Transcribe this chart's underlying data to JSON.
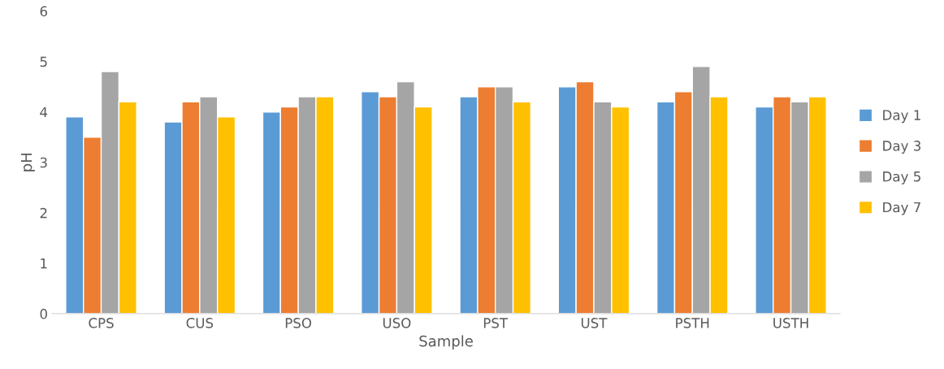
{
  "chart_data": {
    "type": "bar",
    "xlabel": "Sample",
    "ylabel": "pH",
    "categories": [
      "CPS",
      "CUS",
      "PSO",
      "USO",
      "PST",
      "UST",
      "PSTH",
      "USTH"
    ],
    "series": [
      {
        "name": "Day 1",
        "color": "#5b9bd5",
        "values": [
          3.9,
          3.8,
          4.0,
          4.4,
          4.3,
          4.5,
          4.2,
          4.1
        ]
      },
      {
        "name": "Day 3",
        "color": "#ed7d31",
        "values": [
          3.5,
          4.2,
          4.1,
          4.3,
          4.5,
          4.6,
          4.4,
          4.3
        ]
      },
      {
        "name": "Day 5",
        "color": "#a5a5a5",
        "values": [
          4.8,
          4.3,
          4.3,
          4.6,
          4.5,
          4.2,
          4.9,
          4.2
        ]
      },
      {
        "name": "Day 7",
        "color": "#ffc000",
        "values": [
          4.2,
          3.9,
          4.3,
          4.1,
          4.2,
          4.1,
          4.3,
          4.3
        ]
      }
    ],
    "ylim": [
      0,
      6
    ],
    "yticks": [
      0,
      1,
      2,
      3,
      4,
      5,
      6
    ],
    "grid": false,
    "legend": "right"
  }
}
